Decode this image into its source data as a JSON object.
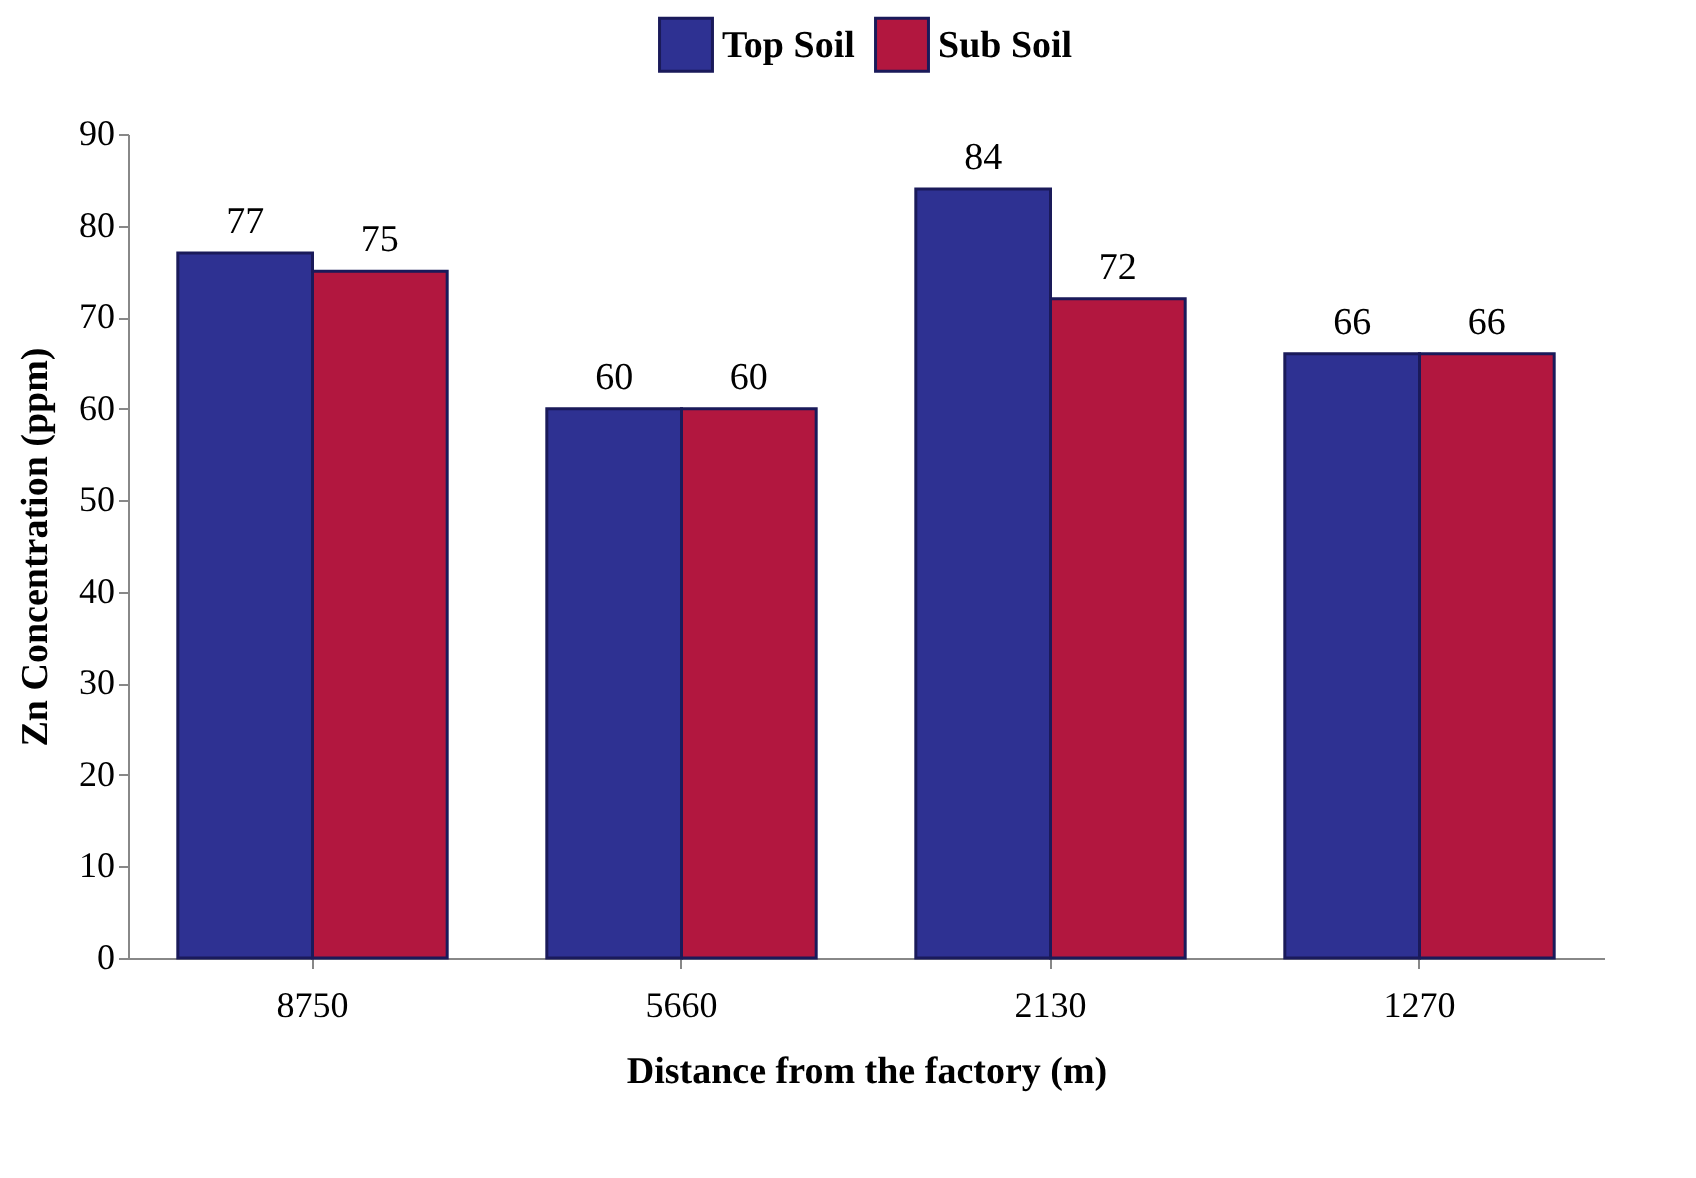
{
  "chart_data": {
    "type": "bar",
    "xlabel": "Distance from the factory (m)",
    "ylabel": "Zn Concentration (ppm)",
    "categories": [
      "8750",
      "5660",
      "2130",
      "1270"
    ],
    "series": [
      {
        "name": "Top Soil",
        "color": "#2e3192",
        "values": [
          77,
          60,
          84,
          66
        ]
      },
      {
        "name": "Sub Soil",
        "color": "#b2173f",
        "values": [
          75,
          60,
          72,
          66
        ]
      }
    ],
    "ylim": [
      0,
      90
    ],
    "yticks": [
      0,
      10,
      20,
      30,
      40,
      50,
      60,
      70,
      80,
      90
    ],
    "grid": false,
    "legend": "top",
    "data_labels": true
  }
}
